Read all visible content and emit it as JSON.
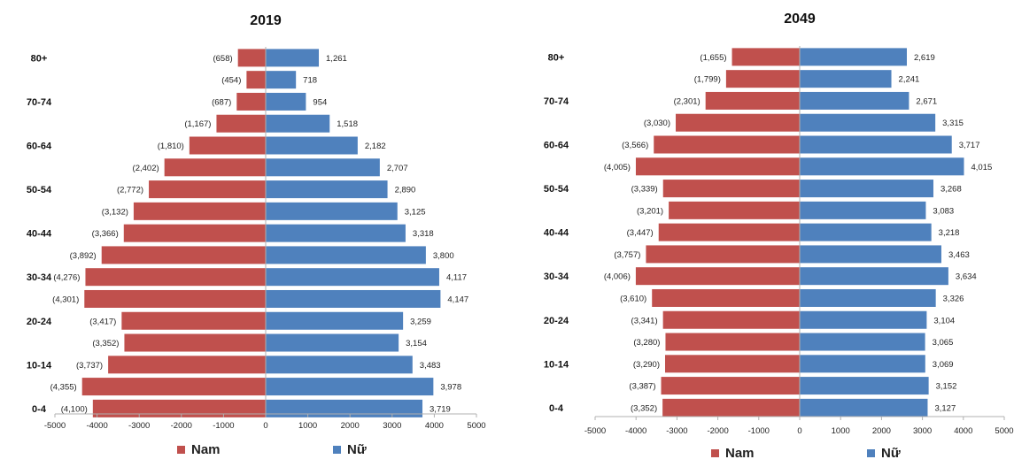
{
  "colors": {
    "male": "#c0504d",
    "female": "#4f81bd",
    "axis": "#b0b0b0"
  },
  "chart_data": [
    {
      "type": "bar",
      "orientation": "horizontal",
      "title": "2019",
      "categories": [
        "80+",
        "75-79",
        "70-74",
        "65-69",
        "60-64",
        "55-59",
        "50-54",
        "45-49",
        "40-44",
        "35-39",
        "30-34",
        "25-29",
        "20-24",
        "15-19",
        "10-14",
        "5-9",
        "0-4"
      ],
      "category_labels_shown": [
        "80+",
        "",
        "70-74",
        "",
        "60-64",
        "",
        "50-54",
        "",
        "40-44",
        "",
        "30-34",
        "",
        "20-24",
        "",
        "10-14",
        "",
        "0-4"
      ],
      "series": [
        {
          "name": "Nam",
          "values": [
            -658,
            -454,
            -687,
            -1167,
            -1810,
            -2402,
            -2772,
            -3132,
            -3366,
            -3892,
            -4276,
            -4301,
            -3417,
            -3352,
            -3737,
            -4355,
            -4100
          ],
          "labels": [
            "(658)",
            "(454)",
            "(687)",
            "(1,167)",
            "(1,810)",
            "(2,402)",
            "(2,772)",
            "(3,132)",
            "(3,366)",
            "(3,892)",
            "(4,276)",
            "(4,301)",
            "(3,417)",
            "(3,352)",
            "(3,737)",
            "(4,355)",
            "(4,100)"
          ]
        },
        {
          "name": "Nữ",
          "values": [
            1261,
            718,
            954,
            1518,
            2182,
            2707,
            2890,
            3125,
            3318,
            3800,
            4117,
            4147,
            3259,
            3154,
            3483,
            3978,
            3719
          ],
          "labels": [
            "1,261",
            "718",
            "954",
            "1,518",
            "2,182",
            "2,707",
            "2,890",
            "3,125",
            "3,318",
            "3,800",
            "4,117",
            "4,147",
            "3,259",
            "3,154",
            "3,483",
            "3,978",
            "3,719"
          ]
        }
      ],
      "xlim": [
        -5000,
        5000
      ],
      "xticks": [
        -5000,
        -4000,
        -3000,
        -2000,
        -1000,
        0,
        1000,
        2000,
        3000,
        4000,
        5000
      ],
      "legend": "bottom"
    },
    {
      "type": "bar",
      "orientation": "horizontal",
      "title": "2049",
      "categories": [
        "80+",
        "75-79",
        "70-74",
        "65-69",
        "60-64",
        "55-59",
        "50-54",
        "45-49",
        "40-44",
        "35-39",
        "30-34",
        "25-29",
        "20-24",
        "15-19",
        "10-14",
        "5-9",
        "0-4"
      ],
      "category_labels_shown": [
        "80+",
        "",
        "70-74",
        "",
        "60-64",
        "",
        "50-54",
        "",
        "40-44",
        "",
        "30-34",
        "",
        "20-24",
        "",
        "10-14",
        "",
        "0-4"
      ],
      "series": [
        {
          "name": "Nam",
          "values": [
            -1655,
            -1799,
            -2301,
            -3030,
            -3566,
            -4005,
            -3339,
            -3201,
            -3447,
            -3757,
            -4006,
            -3610,
            -3341,
            -3280,
            -3290,
            -3387,
            -3352
          ],
          "labels": [
            "(1,655)",
            "(1,799)",
            "(2,301)",
            "(3,030)",
            "(3,566)",
            "(4,005)",
            "(3,339)",
            "(3,201)",
            "(3,447)",
            "(3,757)",
            "(4,006)",
            "(3,610)",
            "(3,341)",
            "(3,280)",
            "(3,290)",
            "(3,387)",
            "(3,352)"
          ]
        },
        {
          "name": "Nữ",
          "values": [
            2619,
            2241,
            2671,
            3315,
            3717,
            4015,
            3268,
            3083,
            3218,
            3463,
            3634,
            3326,
            3104,
            3065,
            3069,
            3152,
            3127
          ],
          "labels": [
            "2,619",
            "2,241",
            "2,671",
            "3,315",
            "3,717",
            "4,015",
            "3,268",
            "3,083",
            "3,218",
            "3,463",
            "3,634",
            "3,326",
            "3,104",
            "3,065",
            "3,069",
            "3,152",
            "3,127"
          ]
        }
      ],
      "xlim": [
        -5000,
        5000
      ],
      "xticks": [
        -5000,
        -4000,
        -3000,
        -2000,
        -1000,
        0,
        1000,
        2000,
        3000,
        4000,
        5000
      ],
      "legend": "bottom"
    }
  ]
}
